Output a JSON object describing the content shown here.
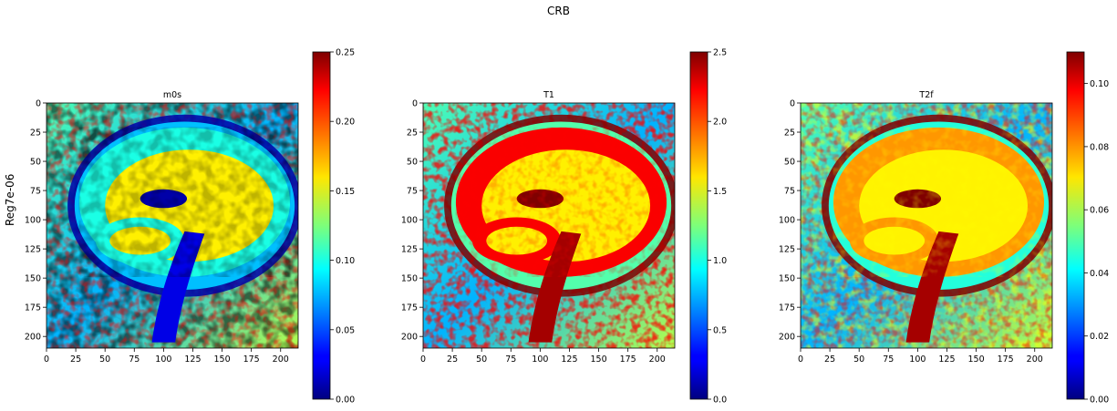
{
  "figure": {
    "title": "CRB",
    "row_label": "Reg7e-06"
  },
  "chart_data": [
    {
      "type": "heatmap",
      "title": "m0s",
      "colormap": "jet",
      "x_ticks": [
        0,
        25,
        50,
        75,
        100,
        125,
        150,
        175,
        200
      ],
      "y_ticks": [
        0,
        25,
        50,
        75,
        100,
        125,
        150,
        175,
        200
      ],
      "xlim": [
        0,
        215
      ],
      "ylim": [
        210,
        0
      ],
      "colorbar": {
        "min": 0,
        "max": 0.25,
        "ticks": [
          "0.00",
          "0.05",
          "0.10",
          "0.15",
          "0.20",
          "0.25"
        ]
      },
      "regions": {
        "background": "noisy",
        "white_matter": 0.16,
        "gray_matter": 0.1,
        "csf": 0.01
      }
    },
    {
      "type": "heatmap",
      "title": "T1",
      "colormap": "jet",
      "x_ticks": [
        0,
        25,
        50,
        75,
        100,
        125,
        150,
        175,
        200
      ],
      "y_ticks": [
        0,
        25,
        50,
        75,
        100,
        125,
        150,
        175,
        200
      ],
      "xlim": [
        0,
        215
      ],
      "ylim": [
        210,
        0
      ],
      "colorbar": {
        "min": 0,
        "max": 2.5,
        "ticks": [
          "0.0",
          "0.5",
          "1.0",
          "1.5",
          "2.0",
          "2.5"
        ]
      },
      "regions": {
        "background": "noisy",
        "white_matter": 1.6,
        "gray_matter": 2.2,
        "csf": 2.5
      }
    },
    {
      "type": "heatmap",
      "title": "T2f",
      "colormap": "jet",
      "x_ticks": [
        0,
        25,
        50,
        75,
        100,
        125,
        150,
        175,
        200
      ],
      "y_ticks": [
        0,
        25,
        50,
        75,
        100,
        125,
        150,
        175,
        200
      ],
      "xlim": [
        0,
        215
      ],
      "ylim": [
        210,
        0
      ],
      "colorbar": {
        "min": 0,
        "max": 0.11,
        "ticks": [
          "0.00",
          "0.02",
          "0.04",
          "0.06",
          "0.08",
          "0.10"
        ]
      },
      "regions": {
        "background": "noisy",
        "white_matter": 0.07,
        "gray_matter": 0.08,
        "csf": 0.11
      }
    }
  ]
}
